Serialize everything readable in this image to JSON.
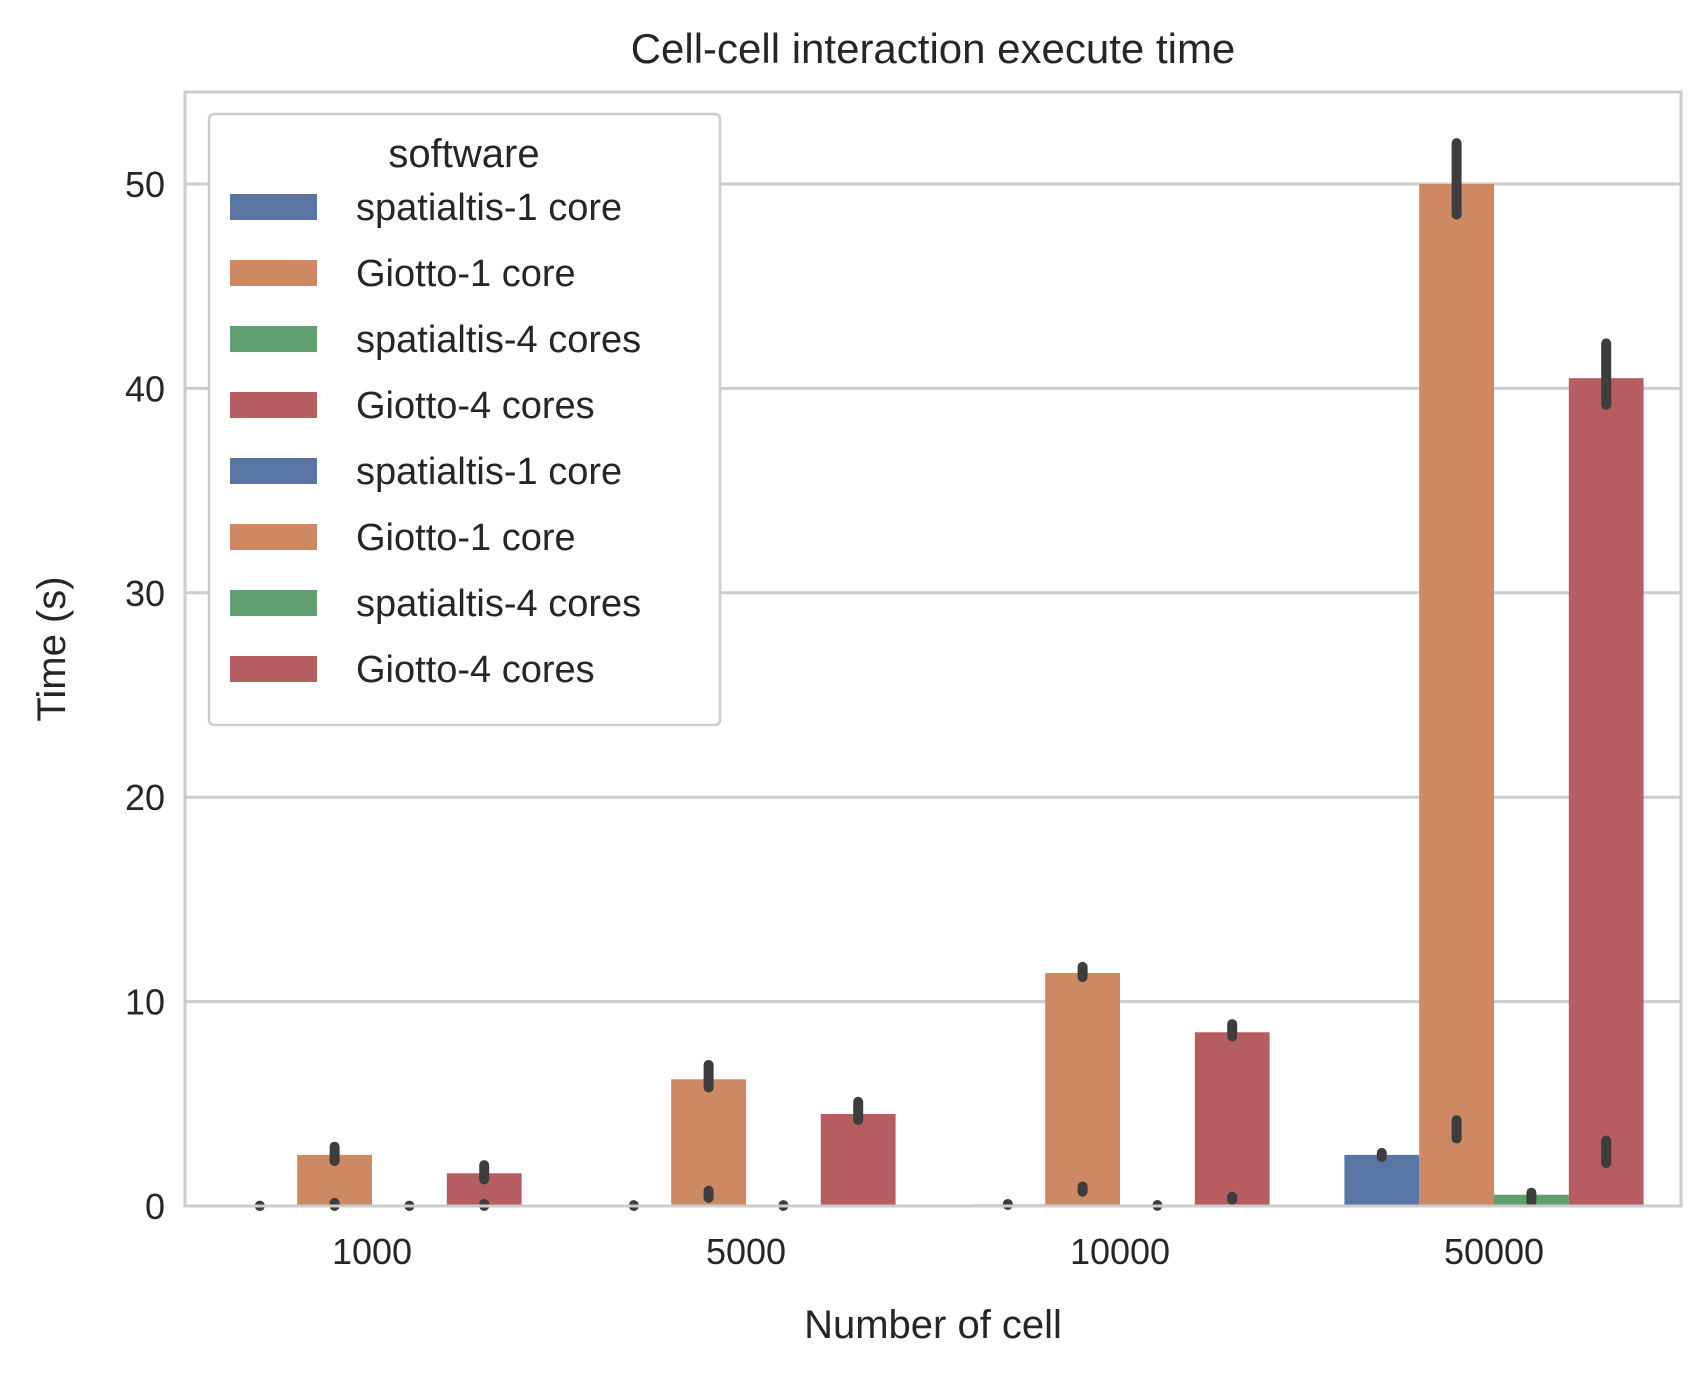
{
  "chart_data": {
    "type": "bar",
    "title": "Cell-cell interaction execute time",
    "xlabel": "Number of cell",
    "ylabel": "Time (s)",
    "categories": [
      "1000",
      "5000",
      "10000",
      "50000"
    ],
    "ylim": [
      0,
      54.5
    ],
    "yticks": [
      0,
      10,
      20,
      30,
      40,
      50
    ],
    "grid": true,
    "legend": {
      "title": "software",
      "placement": "top-left",
      "entries": [
        {
          "label": "spatialtis-1 core",
          "series": 0
        },
        {
          "label": "Giotto-1 core",
          "series": 1
        },
        {
          "label": "spatialtis-4 cores",
          "series": 2
        },
        {
          "label": "Giotto-4 cores",
          "series": 3
        },
        {
          "label": "spatialtis-1 core",
          "series": 0
        },
        {
          "label": "Giotto-1 core",
          "series": 1
        },
        {
          "label": "spatialtis-4 cores",
          "series": 2
        },
        {
          "label": "Giotto-4 cores",
          "series": 3
        }
      ]
    },
    "series": [
      {
        "name": "spatialtis-1 core",
        "color": "#5875a4",
        "values": [
          0.01,
          0.02,
          0.08,
          2.5
        ],
        "ci_low": [
          0.0,
          0.0,
          0.05,
          2.4
        ],
        "ci_high": [
          0.02,
          0.04,
          0.1,
          2.6
        ]
      },
      {
        "name": "Giotto-1 core",
        "color": "#cc8963",
        "values": [
          2.5,
          6.2,
          11.4,
          50.0
        ],
        "ci_low": [
          2.2,
          5.8,
          11.2,
          48.5
        ],
        "ci_high": [
          2.9,
          6.9,
          11.7,
          52.0
        ]
      },
      {
        "name": "spatialtis-4 cores",
        "color": "#5f9e6e",
        "values": [
          0.01,
          0.02,
          0.03,
          0.55
        ],
        "ci_low": [
          0.0,
          0.0,
          0.01,
          0.45
        ],
        "ci_high": [
          0.02,
          0.04,
          0.05,
          0.65
        ]
      },
      {
        "name": "Giotto-4 cores",
        "color": "#b55d60",
        "values": [
          1.6,
          4.5,
          8.5,
          40.5
        ],
        "ci_low": [
          1.3,
          4.2,
          8.3,
          39.2
        ],
        "ci_high": [
          2.0,
          5.1,
          8.9,
          42.2
        ]
      }
    ],
    "overlay_points": [
      {
        "series": 1,
        "values": [
          0.1,
          0.55,
          0.8,
          3.7
        ],
        "ci_low": [
          0.0,
          0.4,
          0.7,
          3.3
        ],
        "ci_high": [
          0.15,
          0.75,
          0.95,
          4.2
        ]
      },
      {
        "series": 3,
        "values": [
          0.05,
          0.0,
          0.35,
          2.6
        ],
        "ci_low": [
          0.0,
          0.0,
          0.3,
          2.1
        ],
        "ci_high": [
          0.1,
          0.0,
          0.45,
          3.2
        ]
      },
      {
        "series": 2,
        "values": [
          0.0,
          0.0,
          0.0,
          0.25
        ],
        "ci_low": [
          0.0,
          0.0,
          0.0,
          0.2
        ],
        "ci_high": [
          0.0,
          0.0,
          0.0,
          0.35
        ]
      }
    ]
  }
}
